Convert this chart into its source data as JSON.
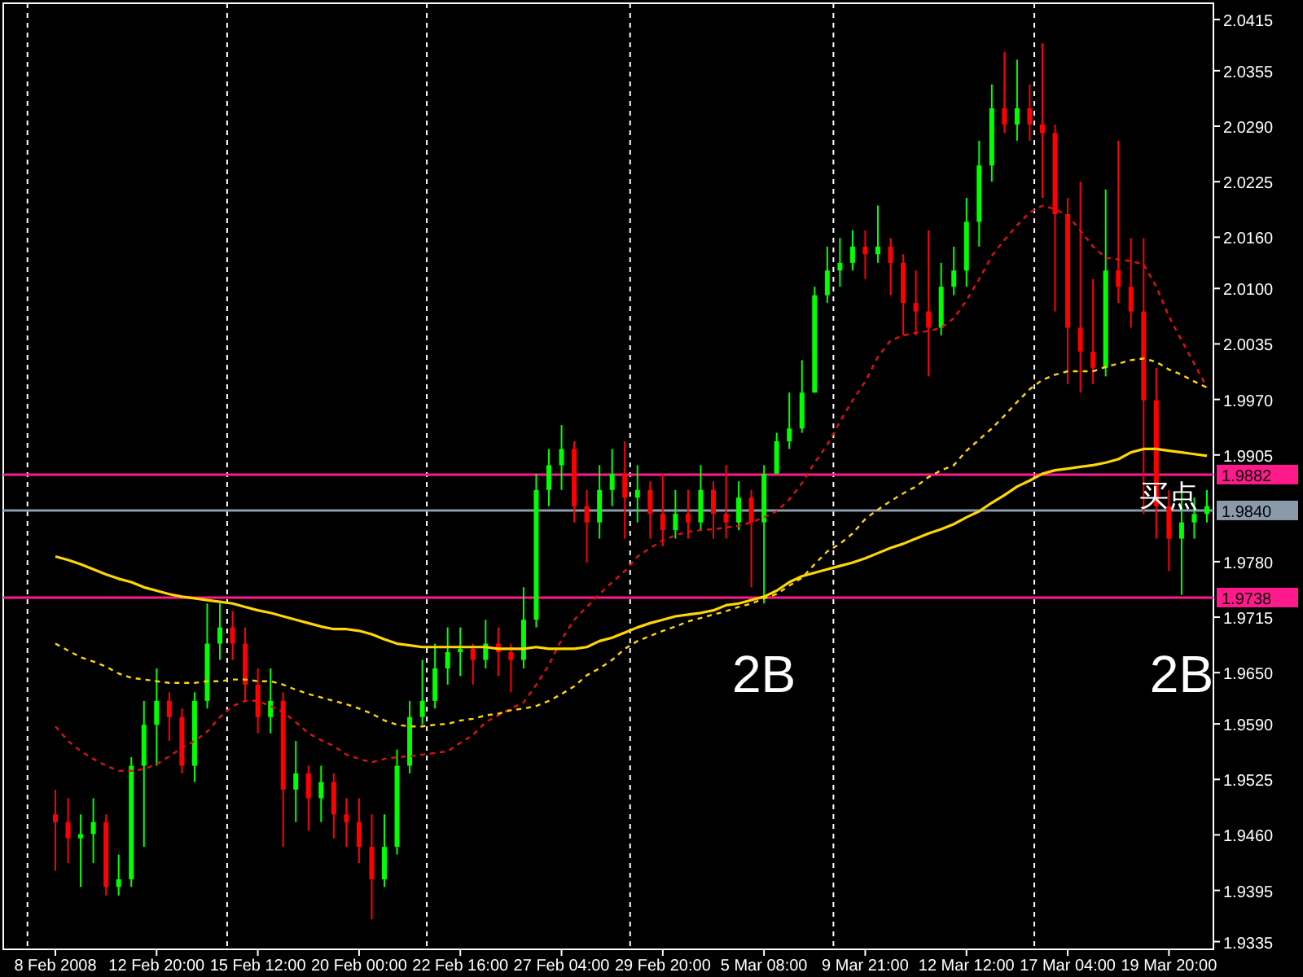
{
  "chart_data": {
    "type": "candlestick",
    "categories": [
      "8 Feb 2008",
      null,
      null,
      null,
      null,
      null,
      null,
      null,
      "12 Feb 20:00",
      null,
      null,
      null,
      null,
      null,
      null,
      null,
      "15 Feb 12:00",
      null,
      null,
      null,
      null,
      null,
      null,
      null,
      "20 Feb 00:00",
      null,
      null,
      null,
      null,
      null,
      null,
      null,
      "22 Feb 16:00",
      null,
      null,
      null,
      null,
      null,
      null,
      null,
      "27 Feb 04:00",
      null,
      null,
      null,
      null,
      null,
      null,
      null,
      "29 Feb 20:00",
      null,
      null,
      null,
      null,
      null,
      null,
      null,
      "5 Mar 08:00",
      null,
      null,
      null,
      null,
      null,
      null,
      null,
      "9 Mar 21:00",
      null,
      null,
      null,
      null,
      null,
      null,
      null,
      "12 Mar 12:00",
      null,
      null,
      null,
      null,
      null,
      null,
      null,
      "17 Mar 04:00",
      null,
      null,
      null,
      null,
      null,
      null,
      null,
      "19 Mar 20:00",
      null,
      null,
      null
    ],
    "ohlc": [
      [
        1.9484,
        1.9513,
        1.9418,
        1.9475
      ],
      [
        1.9475,
        1.9503,
        1.9427,
        1.9456
      ],
      [
        1.9456,
        1.9484,
        1.9399,
        1.9461
      ],
      [
        1.9461,
        1.9503,
        1.9427,
        1.9475
      ],
      [
        1.9475,
        1.9484,
        1.9389,
        1.9399
      ],
      [
        1.9399,
        1.9437,
        1.9389,
        1.9408
      ],
      [
        1.9408,
        1.9551,
        1.9399,
        1.9541
      ],
      [
        1.9541,
        1.9617,
        1.9446,
        1.9589
      ],
      [
        1.9589,
        1.9655,
        1.9541,
        1.9617
      ],
      [
        1.9617,
        1.9627,
        1.957,
        1.9598
      ],
      [
        1.9598,
        1.9608,
        1.9532,
        1.9541
      ],
      [
        1.9541,
        1.9627,
        1.9522,
        1.9617
      ],
      [
        1.9617,
        1.9731,
        1.9608,
        1.9684
      ],
      [
        1.9684,
        1.9731,
        1.9665,
        1.9703
      ],
      [
        1.9703,
        1.9722,
        1.9665,
        1.9684
      ],
      [
        1.9684,
        1.9703,
        1.9617,
        1.9636
      ],
      [
        1.9636,
        1.9655,
        1.9579,
        1.9598
      ],
      [
        1.9598,
        1.9655,
        1.9579,
        1.9617
      ],
      [
        1.9617,
        1.9627,
        1.9446,
        1.9513
      ],
      [
        1.9513,
        1.957,
        1.9475,
        1.9532
      ],
      [
        1.9532,
        1.9541,
        1.9465,
        1.9503
      ],
      [
        1.9503,
        1.9541,
        1.9475,
        1.9522
      ],
      [
        1.9522,
        1.9532,
        1.9456,
        1.9484
      ],
      [
        1.9484,
        1.9503,
        1.9446,
        1.9475
      ],
      [
        1.9475,
        1.9503,
        1.9427,
        1.9446
      ],
      [
        1.9446,
        1.9484,
        1.9361,
        1.9408
      ],
      [
        1.9408,
        1.9484,
        1.9399,
        1.9446
      ],
      [
        1.9446,
        1.956,
        1.9437,
        1.9541
      ],
      [
        1.9541,
        1.9617,
        1.9532,
        1.9598
      ],
      [
        1.9598,
        1.9665,
        1.9589,
        1.9617
      ],
      [
        1.9617,
        1.9684,
        1.9608,
        1.9655
      ],
      [
        1.9655,
        1.9703,
        1.9636,
        1.9674
      ],
      [
        1.9674,
        1.9703,
        1.9646,
        1.9678
      ],
      [
        1.9678,
        1.9684,
        1.9636,
        1.9665
      ],
      [
        1.9665,
        1.9712,
        1.9655,
        1.9684
      ],
      [
        1.9684,
        1.9703,
        1.9646,
        1.9674
      ],
      [
        1.9674,
        1.9684,
        1.9627,
        1.9665
      ],
      [
        1.9665,
        1.975,
        1.9655,
        1.9712
      ],
      [
        1.9712,
        1.9883,
        1.9703,
        1.9864
      ],
      [
        1.9864,
        1.9912,
        1.9845,
        1.9893
      ],
      [
        1.9893,
        1.994,
        1.9864,
        1.9912
      ],
      [
        1.9912,
        1.9921,
        1.9826,
        1.9845
      ],
      [
        1.9845,
        1.9864,
        1.9779,
        1.9826
      ],
      [
        1.9826,
        1.9893,
        1.9807,
        1.9864
      ],
      [
        1.9864,
        1.9912,
        1.9845,
        1.9883
      ],
      [
        1.9883,
        1.9921,
        1.9807,
        1.9855
      ],
      [
        1.9855,
        1.9893,
        1.9826,
        1.9864
      ],
      [
        1.9864,
        1.9874,
        1.9807,
        1.9836
      ],
      [
        1.9836,
        1.9883,
        1.9798,
        1.9817
      ],
      [
        1.9817,
        1.9864,
        1.9807,
        1.9836
      ],
      [
        1.9836,
        1.9864,
        1.9807,
        1.9826
      ],
      [
        1.9826,
        1.9893,
        1.9817,
        1.9864
      ],
      [
        1.9864,
        1.9874,
        1.9807,
        1.9836
      ],
      [
        1.9836,
        1.9893,
        1.9807,
        1.9826
      ],
      [
        1.9826,
        1.9874,
        1.9817,
        1.9855
      ],
      [
        1.9855,
        1.9864,
        1.975,
        1.9826
      ],
      [
        1.9826,
        1.9893,
        1.9731,
        1.9883
      ],
      [
        1.9883,
        1.9931,
        1.9883,
        1.9921
      ],
      [
        1.9921,
        1.9978,
        1.9912,
        1.9936
      ],
      [
        1.9936,
        2.0016,
        1.9931,
        1.9978
      ],
      [
        1.9978,
        2.0102,
        1.9978,
        2.0092
      ],
      [
        2.0092,
        2.0149,
        2.0083,
        2.0121
      ],
      [
        2.0121,
        2.0159,
        2.0102,
        2.013
      ],
      [
        2.013,
        2.0168,
        2.0121,
        2.0149
      ],
      [
        2.0149,
        2.0168,
        2.0111,
        2.014
      ],
      [
        2.014,
        2.0197,
        2.013,
        2.0149
      ],
      [
        2.0149,
        2.0159,
        2.0092,
        2.013
      ],
      [
        2.013,
        2.014,
        2.0045,
        2.0083
      ],
      [
        2.0083,
        2.0121,
        2.0045,
        2.0073
      ],
      [
        2.0073,
        2.0168,
        1.9997,
        2.0054
      ],
      [
        2.0054,
        2.013,
        2.0045,
        2.0102
      ],
      [
        2.0102,
        2.0149,
        2.0092,
        2.0121
      ],
      [
        2.0121,
        2.0206,
        2.0102,
        2.0178
      ],
      [
        2.0178,
        2.0273,
        2.0149,
        2.0244
      ],
      [
        2.0244,
        2.0339,
        2.0225,
        2.0311
      ],
      [
        2.0311,
        2.0377,
        2.0282,
        2.0292
      ],
      [
        2.0292,
        2.0368,
        2.0273,
        2.0311
      ],
      [
        2.0311,
        2.0339,
        2.0273,
        2.0292
      ],
      [
        2.0292,
        2.0387,
        2.0206,
        2.0282
      ],
      [
        2.0282,
        2.0292,
        2.0073,
        2.0187
      ],
      [
        2.0187,
        2.0206,
        1.9988,
        2.0054
      ],
      [
        2.0054,
        2.0225,
        1.9978,
        2.0026
      ],
      [
        2.0026,
        2.0111,
        1.9988,
        2.0007
      ],
      [
        2.0007,
        2.0216,
        1.9997,
        2.0121
      ],
      [
        2.0121,
        2.0273,
        2.0083,
        2.0102
      ],
      [
        2.0102,
        2.0159,
        2.0054,
        2.0073
      ],
      [
        2.0073,
        2.0159,
        1.9836,
        1.9969
      ],
      [
        1.9969,
        2.0007,
        1.9807,
        1.9845
      ],
      [
        1.9845,
        1.9864,
        1.9769,
        1.9807
      ],
      [
        1.9807,
        1.9864,
        1.9741,
        1.9826
      ],
      [
        1.9826,
        1.9855,
        1.9807,
        1.9836
      ],
      [
        1.9836,
        1.9864,
        1.9826,
        1.9845
      ]
    ],
    "colors": [
      "#ff0000",
      "#ff0000",
      "#00ff00",
      "#00ff00",
      "#ff0000",
      "#00ff00",
      "#00ff00",
      "#00ff00",
      "#00ff00",
      "#ff0000",
      "#ff0000",
      "#00ff00",
      "#00ff00",
      "#00ff00",
      "#ff0000",
      "#ff0000",
      "#ff0000",
      "#00ff00",
      "#ff0000",
      "#00ff00",
      "#ff0000",
      "#00ff00",
      "#ff0000",
      "#ff0000",
      "#ff0000",
      "#ff0000",
      "#00ff00",
      "#00ff00",
      "#00ff00",
      "#00ff00",
      "#00ff00",
      "#00ff00",
      "#00ff00",
      "#ff0000",
      "#00ff00",
      "#ff0000",
      "#ff0000",
      "#00ff00",
      "#00ff00",
      "#00ff00",
      "#00ff00",
      "#ff0000",
      "#ff0000",
      "#00ff00",
      "#00ff00",
      "#ff0000",
      "#00ff00",
      "#ff0000",
      "#ff0000",
      "#00ff00",
      "#ff0000",
      "#00ff00",
      "#ff0000",
      "#ff0000",
      "#00ff00",
      "#ff0000",
      "#00ff00",
      "#00ff00",
      "#00ff00",
      "#00ff00",
      "#00ff00",
      "#00ff00",
      "#00ff00",
      "#00ff00",
      "#ff0000",
      "#00ff00",
      "#ff0000",
      "#ff0000",
      "#ff0000",
      "#ff0000",
      "#00ff00",
      "#00ff00",
      "#00ff00",
      "#00ff00",
      "#00ff00",
      "#ff0000",
      "#00ff00",
      "#ff0000",
      "#ff0000",
      "#ff0000",
      "#ff0000",
      "#ff0000",
      "#ff0000",
      "#00ff00",
      "#ff0000",
      "#ff0000",
      "#ff0000",
      "#ff0000",
      "#ff0000",
      "#00ff00",
      "#00ff00",
      "#00ff00"
    ],
    "series": [
      {
        "type": "line",
        "color": "#e01010",
        "line_style": "dashed",
        "values": [
          1.9587,
          1.957,
          1.9558,
          1.9549,
          1.9541,
          1.9535,
          1.9535,
          1.9537,
          1.9543,
          1.9552,
          1.9562,
          1.957,
          1.9581,
          1.9598,
          1.9611,
          1.9617,
          1.9617,
          1.9611,
          1.9604,
          1.9592,
          1.9579,
          1.9571,
          1.9564,
          1.9554,
          1.9549,
          1.9545,
          1.9549,
          1.9551,
          1.9552,
          1.9554,
          1.9556,
          1.9558,
          1.9568,
          1.9577,
          1.9592,
          1.96,
          1.9608,
          1.9615,
          1.9636,
          1.9659,
          1.9689,
          1.9712,
          1.9727,
          1.9742,
          1.9756,
          1.9769,
          1.9786,
          1.9796,
          1.9805,
          1.9811,
          1.9815,
          1.9817,
          1.9818,
          1.982,
          1.9822,
          1.9826,
          1.9832,
          1.9839,
          1.9853,
          1.9872,
          1.9896,
          1.9917,
          1.9944,
          1.9969,
          1.9991,
          2.002,
          2.0039,
          2.0045,
          2.0048,
          2.005,
          2.0054,
          2.0065,
          2.0086,
          2.0111,
          2.0138,
          2.0157,
          2.0174,
          2.0189,
          2.0197,
          2.0193,
          2.0185,
          2.0168,
          2.0149,
          2.0136,
          2.0134,
          2.0132,
          2.0128,
          2.0102,
          2.0067,
          2.0039,
          2.0012,
          1.9984
        ]
      },
      {
        "type": "line",
        "color": "#ffd700",
        "line_style": "dashed",
        "values": [
          1.9684,
          1.9676,
          1.9668,
          1.9663,
          1.9657,
          1.9649,
          1.9644,
          1.9642,
          1.964,
          1.9638,
          1.9638,
          1.9638,
          1.964,
          1.964,
          1.9642,
          1.9642,
          1.964,
          1.964,
          1.9636,
          1.963,
          1.9625,
          1.9621,
          1.9617,
          1.9613,
          1.9608,
          1.9602,
          1.9594,
          1.9589,
          1.9587,
          1.9587,
          1.9589,
          1.959,
          1.9594,
          1.9596,
          1.96,
          1.9602,
          1.9606,
          1.9608,
          1.9611,
          1.9617,
          1.9625,
          1.9634,
          1.9647,
          1.9655,
          1.9665,
          1.9678,
          1.9687,
          1.9693,
          1.9699,
          1.9704,
          1.971,
          1.9714,
          1.9718,
          1.9722,
          1.9727,
          1.9731,
          1.9737,
          1.9742,
          1.9752,
          1.9761,
          1.9777,
          1.9792,
          1.9801,
          1.9813,
          1.983,
          1.9841,
          1.9851,
          1.986,
          1.9868,
          1.9879,
          1.9887,
          1.9893,
          1.991,
          1.9923,
          1.9936,
          1.9951,
          1.9967,
          1.9982,
          1.9993,
          1.9999,
          2.0003,
          2.0003,
          2.0003,
          2.0008,
          2.0012,
          2.0016,
          2.0018,
          2.0014,
          2.0005,
          1.9999,
          1.9991,
          1.9984
        ]
      },
      {
        "type": "line",
        "color": "#ffd700",
        "line_style": "solid",
        "values": [
          1.9786,
          1.9782,
          1.9777,
          1.9771,
          1.9765,
          1.976,
          1.9756,
          1.975,
          1.9746,
          1.9742,
          1.9739,
          1.9737,
          1.9735,
          1.9733,
          1.9731,
          1.9727,
          1.9723,
          1.972,
          1.9716,
          1.9712,
          1.9708,
          1.9704,
          1.9701,
          1.9701,
          1.9699,
          1.9695,
          1.9689,
          1.9684,
          1.9682,
          1.968,
          1.968,
          1.968,
          1.968,
          1.968,
          1.968,
          1.9678,
          1.9678,
          1.9678,
          1.968,
          1.9678,
          1.9678,
          1.9678,
          1.968,
          1.9687,
          1.9691,
          1.9697,
          1.9703,
          1.9708,
          1.9712,
          1.9716,
          1.9718,
          1.972,
          1.9723,
          1.9729,
          1.9731,
          1.9735,
          1.9739,
          1.9746,
          1.9756,
          1.9763,
          1.9767,
          1.9771,
          1.9775,
          1.9779,
          1.9784,
          1.979,
          1.9796,
          1.9801,
          1.9807,
          1.9813,
          1.9818,
          1.9824,
          1.9832,
          1.9839,
          1.9849,
          1.9858,
          1.9868,
          1.9875,
          1.9883,
          1.9887,
          1.9889,
          1.9891,
          1.9893,
          1.9896,
          1.99,
          1.9908,
          1.9912,
          1.9912,
          1.991,
          1.9908,
          1.9906,
          1.9904
        ]
      }
    ],
    "ylim": [
      1.9326,
      2.0434
    ],
    "yticks": [
      {
        "value": 2.0415,
        "label": "2.0415"
      },
      {
        "value": 2.0355,
        "label": "2.0355"
      },
      {
        "value": 2.029,
        "label": "2.0290"
      },
      {
        "value": 2.0225,
        "label": "2.0225"
      },
      {
        "value": 2.016,
        "label": "2.0160"
      },
      {
        "value": 2.01,
        "label": "2.0100"
      },
      {
        "value": 2.0035,
        "label": "2.0035"
      },
      {
        "value": 1.997,
        "label": "1.9970"
      },
      {
        "value": 1.9905,
        "label": "1.9905"
      },
      {
        "value": 1.978,
        "label": "1.9780"
      },
      {
        "value": 1.9715,
        "label": "1.9715"
      },
      {
        "value": 1.965,
        "label": "1.9650"
      },
      {
        "value": 1.959,
        "label": "1.9590"
      },
      {
        "value": 1.9525,
        "label": "1.9525"
      },
      {
        "value": 1.946,
        "label": "1.9460"
      },
      {
        "value": 1.9395,
        "label": "1.9395"
      },
      {
        "value": 1.9335,
        "label": "1.9335"
      }
    ],
    "ref_lines": [
      {
        "axis": "y",
        "value": 1.9882,
        "label": "1.9882",
        "color": "#ff1a8c"
      },
      {
        "axis": "y",
        "value": 1.984,
        "label": "1.9840",
        "color": "#8a9aaa"
      },
      {
        "axis": "y",
        "value": 1.9738,
        "label": "1.9738",
        "color": "#ff1a8c"
      }
    ],
    "annotations": [
      "2B",
      "2B",
      {
        "text": "买点",
        "y": 1.9882
      }
    ]
  }
}
